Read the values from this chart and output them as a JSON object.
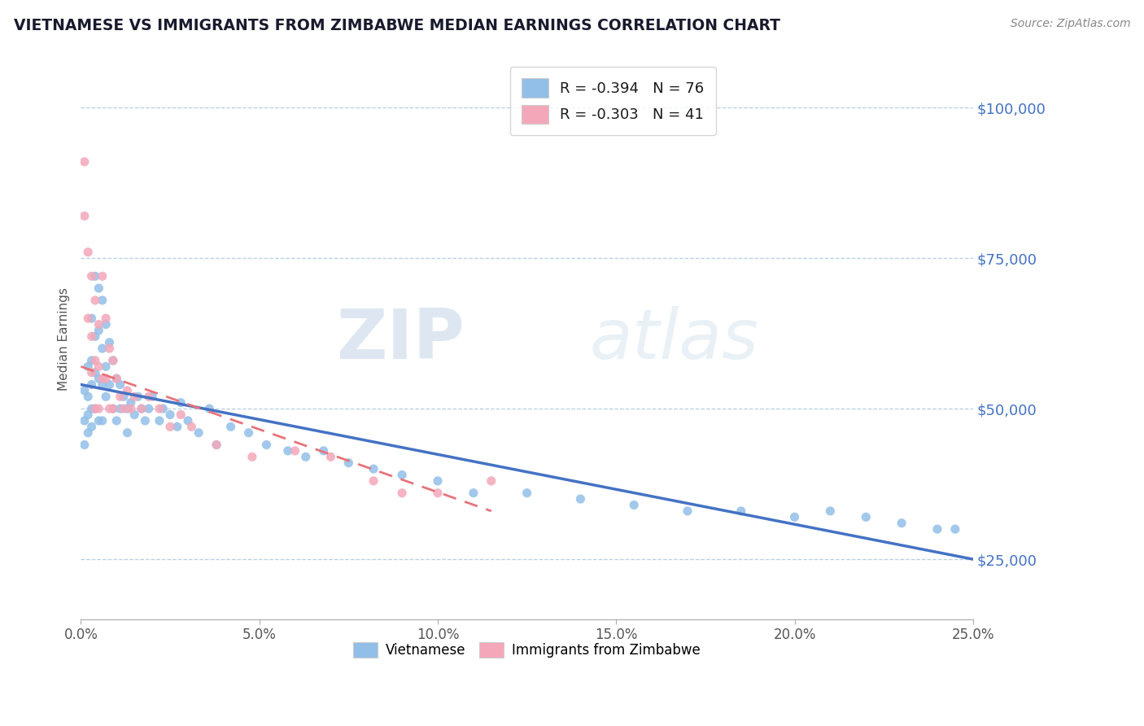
{
  "title": "VIETNAMESE VS IMMIGRANTS FROM ZIMBABWE MEDIAN EARNINGS CORRELATION CHART",
  "source": "Source: ZipAtlas.com",
  "ylabel": "Median Earnings",
  "xlim": [
    0.0,
    0.25
  ],
  "ylim": [
    15000,
    108000
  ],
  "yticks": [
    25000,
    50000,
    75000,
    100000
  ],
  "xticks": [
    0.0,
    0.05,
    0.1,
    0.15,
    0.2,
    0.25
  ],
  "xtick_labels": [
    "0.0%",
    "5.0%",
    "10.0%",
    "15.0%",
    "20.0%",
    "25.0%"
  ],
  "ytick_labels": [
    "$25,000",
    "$50,000",
    "$75,000",
    "$100,000"
  ],
  "blue_color": "#92bfe8",
  "pink_color": "#f4a7b9",
  "line_blue": "#4472c4",
  "line_pink": "#e8737a",
  "r_blue": -0.394,
  "n_blue": 76,
  "r_pink": -0.303,
  "n_pink": 41,
  "legend_labels": [
    "Vietnamese",
    "Immigrants from Zimbabwe"
  ],
  "watermark_zip": "ZIP",
  "watermark_atlas": "atlas",
  "blue_scatter_x": [
    0.001,
    0.001,
    0.001,
    0.002,
    0.002,
    0.002,
    0.002,
    0.003,
    0.003,
    0.003,
    0.003,
    0.003,
    0.004,
    0.004,
    0.004,
    0.004,
    0.005,
    0.005,
    0.005,
    0.005,
    0.006,
    0.006,
    0.006,
    0.006,
    0.007,
    0.007,
    0.007,
    0.008,
    0.008,
    0.009,
    0.009,
    0.01,
    0.01,
    0.011,
    0.011,
    0.012,
    0.013,
    0.013,
    0.014,
    0.015,
    0.016,
    0.017,
    0.018,
    0.019,
    0.02,
    0.022,
    0.023,
    0.025,
    0.027,
    0.028,
    0.03,
    0.033,
    0.036,
    0.038,
    0.042,
    0.047,
    0.052,
    0.058,
    0.063,
    0.068,
    0.075,
    0.082,
    0.09,
    0.1,
    0.11,
    0.125,
    0.14,
    0.155,
    0.17,
    0.185,
    0.2,
    0.21,
    0.22,
    0.23,
    0.24,
    0.245
  ],
  "blue_scatter_y": [
    53000,
    48000,
    44000,
    57000,
    52000,
    49000,
    46000,
    65000,
    58000,
    54000,
    50000,
    47000,
    72000,
    62000,
    56000,
    50000,
    70000,
    63000,
    55000,
    48000,
    68000,
    60000,
    54000,
    48000,
    64000,
    57000,
    52000,
    61000,
    54000,
    58000,
    50000,
    55000,
    48000,
    54000,
    50000,
    52000,
    50000,
    46000,
    51000,
    49000,
    52000,
    50000,
    48000,
    50000,
    52000,
    48000,
    50000,
    49000,
    47000,
    51000,
    48000,
    46000,
    50000,
    44000,
    47000,
    46000,
    44000,
    43000,
    42000,
    43000,
    41000,
    40000,
    39000,
    38000,
    36000,
    36000,
    35000,
    34000,
    33000,
    33000,
    32000,
    33000,
    32000,
    31000,
    30000,
    30000
  ],
  "pink_scatter_x": [
    0.001,
    0.001,
    0.002,
    0.002,
    0.003,
    0.003,
    0.003,
    0.004,
    0.004,
    0.004,
    0.005,
    0.005,
    0.005,
    0.006,
    0.006,
    0.007,
    0.007,
    0.008,
    0.008,
    0.009,
    0.009,
    0.01,
    0.011,
    0.012,
    0.013,
    0.014,
    0.015,
    0.017,
    0.019,
    0.022,
    0.025,
    0.028,
    0.031,
    0.038,
    0.048,
    0.06,
    0.07,
    0.082,
    0.09,
    0.1,
    0.115
  ],
  "pink_scatter_y": [
    91000,
    82000,
    76000,
    65000,
    72000,
    62000,
    56000,
    68000,
    58000,
    50000,
    64000,
    57000,
    50000,
    72000,
    55000,
    65000,
    55000,
    60000,
    50000,
    58000,
    50000,
    55000,
    52000,
    50000,
    53000,
    50000,
    52000,
    50000,
    52000,
    50000,
    47000,
    49000,
    47000,
    44000,
    42000,
    43000,
    42000,
    38000,
    36000,
    36000,
    38000
  ],
  "line_blue_x0": 0.0,
  "line_blue_x1": 0.25,
  "line_blue_y0": 54000,
  "line_blue_y1": 25000,
  "line_pink_x0": 0.0,
  "line_pink_x1": 0.115,
  "line_pink_y0": 57000,
  "line_pink_y1": 33000
}
